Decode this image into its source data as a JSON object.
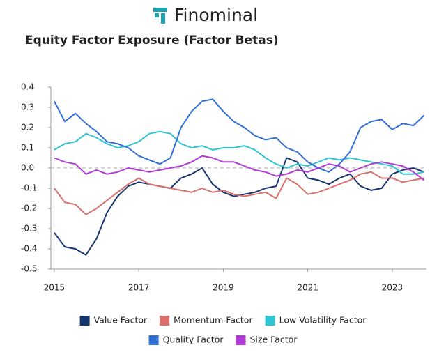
{
  "brand": "Finominal",
  "chart_data": {
    "type": "line",
    "title": "Equity Factor Exposure (Factor Betas)",
    "x": [
      2015,
      2015.25,
      2015.5,
      2015.75,
      2016,
      2016.25,
      2016.5,
      2016.75,
      2017,
      2017.25,
      2017.5,
      2017.75,
      2018,
      2018.25,
      2018.5,
      2018.75,
      2019,
      2019.25,
      2019.5,
      2019.75,
      2020,
      2020.25,
      2020.5,
      2020.75,
      2021,
      2021.25,
      2021.5,
      2021.75,
      2022,
      2022.25,
      2022.5,
      2022.75,
      2023,
      2023.25,
      2023.5,
      2023.75
    ],
    "xlim": [
      2014.92,
      2023.81
    ],
    "xticks": [
      2015,
      2017,
      2019,
      2021,
      2023
    ],
    "ylim": [
      -0.5,
      0.4
    ],
    "yticks": [
      0.4,
      0.3,
      0.2,
      0.1,
      {
        "value": 0,
        "label": "0.0"
      },
      -0.1,
      -0.2,
      -0.3,
      -0.4,
      -0.5
    ],
    "zero_line": true,
    "series": [
      {
        "name": "Value Factor",
        "color": "#17356e",
        "values": [
          -0.32,
          -0.39,
          -0.4,
          -0.43,
          -0.35,
          -0.22,
          -0.14,
          -0.09,
          -0.07,
          -0.08,
          -0.09,
          -0.1,
          -0.05,
          -0.03,
          0.0,
          -0.08,
          -0.12,
          -0.14,
          -0.13,
          -0.12,
          -0.1,
          -0.09,
          0.05,
          0.03,
          -0.05,
          -0.06,
          -0.08,
          -0.05,
          -0.03,
          -0.09,
          -0.11,
          -0.1,
          -0.03,
          -0.01,
          0.0,
          -0.02
        ]
      },
      {
        "name": "Momentum Factor",
        "color": "#d9706b",
        "values": [
          -0.1,
          -0.17,
          -0.18,
          -0.23,
          -0.2,
          -0.16,
          -0.12,
          -0.08,
          -0.05,
          -0.08,
          -0.09,
          -0.1,
          -0.11,
          -0.12,
          -0.1,
          -0.12,
          -0.11,
          -0.13,
          -0.14,
          -0.13,
          -0.12,
          -0.15,
          -0.05,
          -0.08,
          -0.13,
          -0.12,
          -0.1,
          -0.08,
          -0.06,
          -0.03,
          -0.02,
          -0.05,
          -0.05,
          -0.07,
          -0.06,
          -0.05
        ]
      },
      {
        "name": "Low Volatility Factor",
        "color": "#2ec4d4",
        "values": [
          0.09,
          0.12,
          0.13,
          0.17,
          0.15,
          0.12,
          0.1,
          0.11,
          0.13,
          0.17,
          0.18,
          0.17,
          0.12,
          0.1,
          0.11,
          0.09,
          0.1,
          0.1,
          0.11,
          0.09,
          0.05,
          0.02,
          0.0,
          0.02,
          0.01,
          0.03,
          0.05,
          0.04,
          0.05,
          0.04,
          0.03,
          0.02,
          0.01,
          -0.03,
          -0.03,
          -0.02
        ]
      },
      {
        "name": "Quality Factor",
        "color": "#2f6fd6",
        "values": [
          0.33,
          0.23,
          0.27,
          0.22,
          0.18,
          0.13,
          0.12,
          0.1,
          0.06,
          0.04,
          0.02,
          0.05,
          0.2,
          0.28,
          0.33,
          0.34,
          0.28,
          0.23,
          0.2,
          0.16,
          0.14,
          0.15,
          0.1,
          0.08,
          0.03,
          0.0,
          -0.02,
          0.02,
          0.08,
          0.2,
          0.23,
          0.24,
          0.19,
          0.22,
          0.21,
          0.26
        ]
      },
      {
        "name": "Size Factor",
        "color": "#b23ad6",
        "values": [
          0.05,
          0.03,
          0.02,
          -0.03,
          -0.01,
          -0.03,
          -0.02,
          0.0,
          -0.01,
          -0.02,
          -0.01,
          0.0,
          0.01,
          0.03,
          0.06,
          0.05,
          0.03,
          0.03,
          0.01,
          -0.01,
          -0.02,
          -0.04,
          -0.03,
          -0.01,
          -0.02,
          0.0,
          0.02,
          0.01,
          -0.02,
          0.0,
          0.02,
          0.03,
          0.02,
          0.01,
          -0.02,
          -0.06
        ]
      }
    ]
  }
}
